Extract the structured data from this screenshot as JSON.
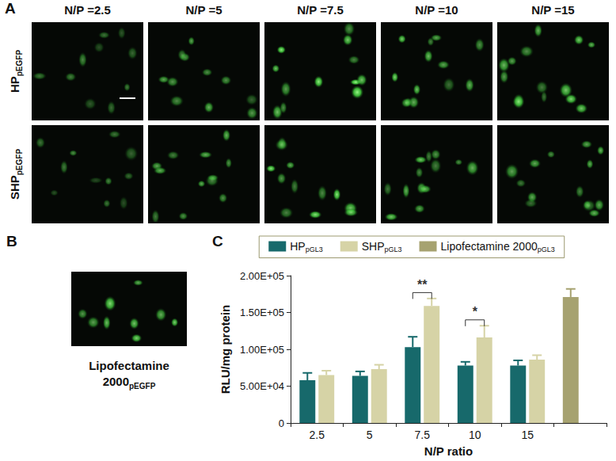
{
  "panels": {
    "A": {
      "label": "A",
      "columns": [
        "N/P =2.5",
        "N/P =5",
        "N/P =7.5",
        "N/P =10",
        "N/P =15"
      ],
      "rows": [
        {
          "text": "HP",
          "subscript": "pEGFP"
        },
        {
          "text": "SHP",
          "subscript": "pEGFP"
        }
      ]
    },
    "B": {
      "label": "B",
      "caption": {
        "text": "Lipofectamine 2000",
        "subscript": "pEGFP"
      }
    },
    "C": {
      "label": "C"
    }
  },
  "chart_data": {
    "type": "bar",
    "x_label": "N/P ratio",
    "y_label": "RLU/mg protein",
    "categories": [
      "2.5",
      "5",
      "7.5",
      "10",
      "15",
      null
    ],
    "ylim": [
      0,
      200000
    ],
    "yticks": [
      0,
      {
        "value": 50000,
        "label": "5.00E+04"
      },
      {
        "value": 100000,
        "label": "1.00E+05"
      },
      {
        "value": 150000,
        "label": "1.50E+05"
      },
      {
        "value": 200000,
        "label": "2.00E+05"
      }
    ],
    "grid": false,
    "legend": "top",
    "series": [
      {
        "name": "HP",
        "subscript": "pGL3",
        "color": "#17696b",
        "values": [
          58000,
          64000,
          103000,
          78000,
          78000,
          null
        ],
        "errors": [
          10000,
          6000,
          14000,
          5000,
          7000,
          null
        ]
      },
      {
        "name": "SHP",
        "subscript": "pGL3",
        "color": "#d6d3a6",
        "values": [
          65000,
          73000,
          159000,
          116000,
          86000,
          null
        ],
        "errors": [
          6000,
          6000,
          10000,
          16000,
          6000,
          null
        ]
      },
      {
        "name": "Lipofectamine 2000",
        "subscript": "pGL3",
        "color": "#a6a270",
        "values": [
          null,
          null,
          null,
          null,
          null,
          171000
        ],
        "errors": [
          null,
          null,
          null,
          null,
          null,
          11000
        ]
      }
    ],
    "annotations": [
      {
        "text": "**",
        "category": "7.5",
        "between": [
          "HP",
          "SHP"
        ]
      },
      {
        "text": "*",
        "category": "10",
        "between": [
          "HP",
          "SHP"
        ]
      }
    ]
  }
}
